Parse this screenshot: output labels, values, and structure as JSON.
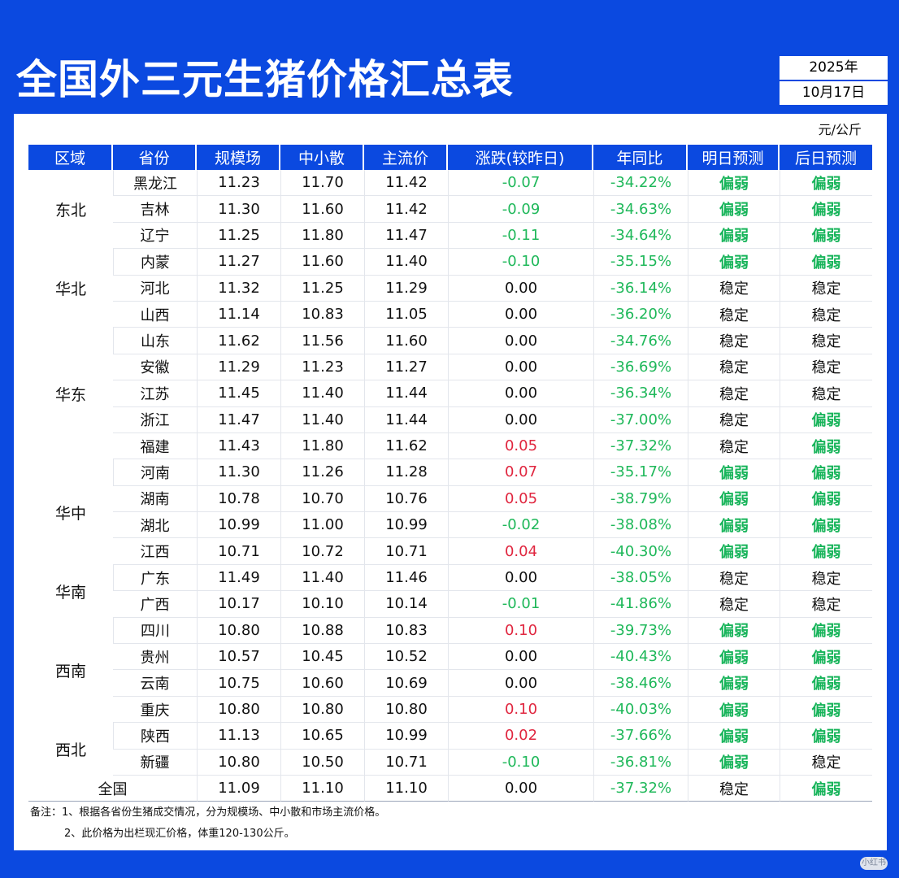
{
  "title": "全国外三元生猪价格汇总表",
  "date": {
    "year": "2025年",
    "day": "10月17日"
  },
  "unit": "元/公斤",
  "headers": [
    "区域",
    "省份",
    "规模场",
    "中小散",
    "主流价",
    "涨跌(较昨日)",
    "年同比",
    "明日预测",
    "后日预测"
  ],
  "regions": [
    {
      "name": "东北",
      "span": 3
    },
    {
      "name": "华北",
      "span": 3
    },
    {
      "name": "华东",
      "span": 5
    },
    {
      "name": "华中",
      "span": 4
    },
    {
      "name": "华南",
      "span": 2
    },
    {
      "name": "西南",
      "span": 4
    },
    {
      "name": "西北",
      "span": 2
    }
  ],
  "rows": [
    [
      "黑龙江",
      "11.23",
      "11.70",
      "11.42",
      "-0.07",
      "-34.22%",
      "偏弱",
      "偏弱"
    ],
    [
      "吉林",
      "11.30",
      "11.60",
      "11.42",
      "-0.09",
      "-34.63%",
      "偏弱",
      "偏弱"
    ],
    [
      "辽宁",
      "11.25",
      "11.80",
      "11.47",
      "-0.11",
      "-34.64%",
      "偏弱",
      "偏弱"
    ],
    [
      "内蒙",
      "11.27",
      "11.60",
      "11.40",
      "-0.10",
      "-35.15%",
      "偏弱",
      "偏弱"
    ],
    [
      "河北",
      "11.32",
      "11.25",
      "11.29",
      "0.00",
      "-36.14%",
      "稳定",
      "稳定"
    ],
    [
      "山西",
      "11.14",
      "10.83",
      "11.05",
      "0.00",
      "-36.20%",
      "稳定",
      "稳定"
    ],
    [
      "山东",
      "11.62",
      "11.56",
      "11.60",
      "0.00",
      "-34.76%",
      "稳定",
      "稳定"
    ],
    [
      "安徽",
      "11.29",
      "11.23",
      "11.27",
      "0.00",
      "-36.69%",
      "稳定",
      "稳定"
    ],
    [
      "江苏",
      "11.45",
      "11.40",
      "11.44",
      "0.00",
      "-36.34%",
      "稳定",
      "稳定"
    ],
    [
      "浙江",
      "11.47",
      "11.40",
      "11.44",
      "0.00",
      "-37.00%",
      "稳定",
      "偏弱"
    ],
    [
      "福建",
      "11.43",
      "11.80",
      "11.62",
      "0.05",
      "-37.32%",
      "稳定",
      "偏弱"
    ],
    [
      "河南",
      "11.30",
      "11.26",
      "11.28",
      "0.07",
      "-35.17%",
      "偏弱",
      "偏弱"
    ],
    [
      "湖南",
      "10.78",
      "10.70",
      "10.76",
      "0.05",
      "-38.79%",
      "偏弱",
      "偏弱"
    ],
    [
      "湖北",
      "10.99",
      "11.00",
      "10.99",
      "-0.02",
      "-38.08%",
      "偏弱",
      "偏弱"
    ],
    [
      "江西",
      "10.71",
      "10.72",
      "10.71",
      "0.04",
      "-40.30%",
      "偏弱",
      "偏弱"
    ],
    [
      "广东",
      "11.49",
      "11.40",
      "11.46",
      "0.00",
      "-38.05%",
      "稳定",
      "稳定"
    ],
    [
      "广西",
      "10.17",
      "10.10",
      "10.14",
      "-0.01",
      "-41.86%",
      "稳定",
      "稳定"
    ],
    [
      "四川",
      "10.80",
      "10.88",
      "10.83",
      "0.10",
      "-39.73%",
      "偏弱",
      "偏弱"
    ],
    [
      "贵州",
      "10.57",
      "10.45",
      "10.52",
      "0.00",
      "-40.43%",
      "偏弱",
      "偏弱"
    ],
    [
      "云南",
      "10.75",
      "10.60",
      "10.69",
      "0.00",
      "-38.46%",
      "偏弱",
      "偏弱"
    ],
    [
      "重庆",
      "10.80",
      "10.80",
      "10.80",
      "0.10",
      "-40.03%",
      "偏弱",
      "偏弱"
    ],
    [
      "陕西",
      "11.13",
      "10.65",
      "10.99",
      "0.02",
      "-37.66%",
      "偏弱",
      "偏弱"
    ],
    [
      "新疆",
      "10.80",
      "10.50",
      "10.71",
      "-0.10",
      "-36.81%",
      "偏弱",
      "稳定"
    ]
  ],
  "national": [
    "全国",
    "11.09",
    "11.10",
    "11.10",
    "0.00",
    "-37.32%",
    "稳定",
    "偏弱"
  ],
  "notes": [
    "备注：1、根据各省份生猪成交情况，分为规模场、中小散和市场主流价格。",
    "2、此价格为出栏现汇价格，体重120-130公斤。"
  ],
  "watermark": "小红书",
  "colors": {
    "brand_blue": "#0b49e0",
    "down_green": "#1fb85a",
    "up_red": "#e0263f",
    "weak_green": "#17b45a"
  }
}
